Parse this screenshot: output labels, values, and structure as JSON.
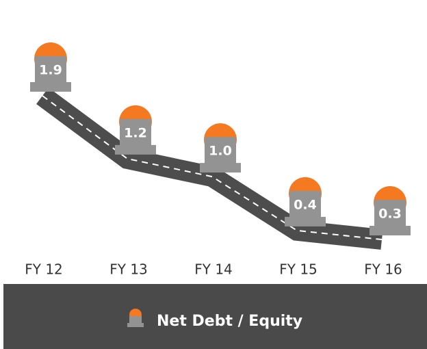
{
  "chart_data": {
    "type": "line",
    "categories": [
      "FY 12",
      "FY 13",
      "FY 14",
      "FY 15",
      "FY 16"
    ],
    "series": [
      {
        "name": "Net Debt / Equity",
        "color": "#4d4d4d",
        "marker_color": "#f47920",
        "body_color": "#939393",
        "values": [
          1.9,
          1.2,
          1.0,
          0.4,
          0.3
        ],
        "value_labels": [
          "1.9",
          "1.2",
          "1.0",
          "0.4",
          "0.3"
        ]
      }
    ],
    "legend": "bottom"
  }
}
